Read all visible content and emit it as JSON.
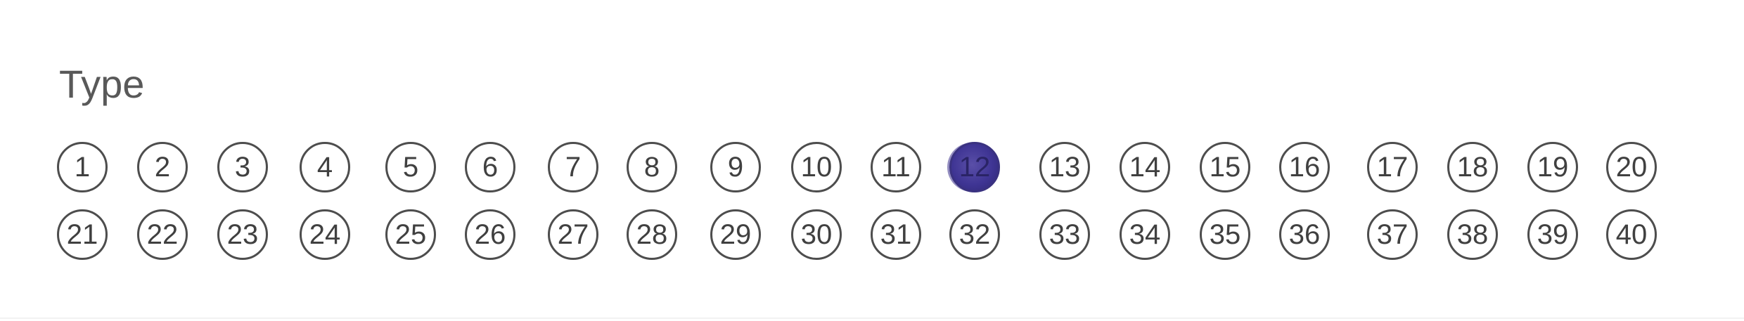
{
  "section": {
    "label": "Type"
  },
  "row1": {
    "options": [
      "1",
      "2",
      "3",
      "4",
      "5",
      "6",
      "7",
      "8",
      "9",
      "10",
      "11",
      "12",
      "13",
      "14",
      "15",
      "16",
      "17",
      "18",
      "19",
      "20"
    ]
  },
  "row2": {
    "options": [
      "21",
      "22",
      "23",
      "24",
      "25",
      "26",
      "27",
      "28",
      "29",
      "30",
      "31",
      "32",
      "33",
      "34",
      "35",
      "36",
      "37",
      "38",
      "39",
      "40"
    ]
  },
  "selected": "12",
  "colors": {
    "outline": "#4d4d4d",
    "text": "#404040",
    "fill": "#3f3594",
    "label": "#595959"
  }
}
